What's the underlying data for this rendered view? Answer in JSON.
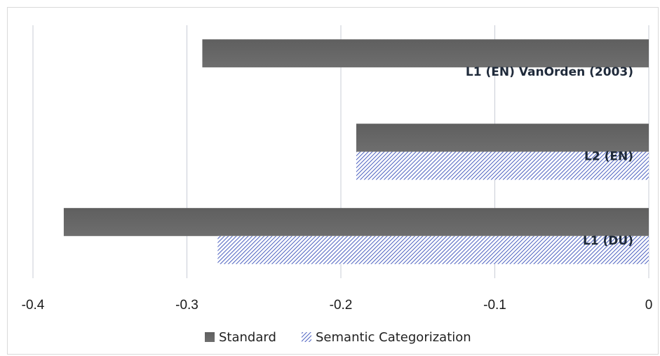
{
  "chart_data": {
    "type": "bar",
    "orientation": "horizontal",
    "categories": [
      "L1 (EN) VanOrden (2003)",
      "L2 (EN)",
      "L1 (DU)"
    ],
    "series": [
      {
        "name": "Standard",
        "values": [
          -0.29,
          -0.19,
          -0.38
        ],
        "color": "#666666",
        "pattern": "solid"
      },
      {
        "name": "Semantic Categorization",
        "values": [
          null,
          -0.19,
          -0.28
        ],
        "color": "#4a5fbf",
        "pattern": "diagonal-hatch"
      }
    ],
    "xlim": [
      -0.4,
      0
    ],
    "xticks": [
      -0.4,
      -0.3,
      -0.2,
      -0.1,
      0
    ],
    "xtick_labels": [
      "-0.4",
      "-0.3",
      "-0.2",
      "-0.1",
      "0"
    ],
    "grid": true,
    "legend": "bottom",
    "title": "",
    "xlabel": "",
    "ylabel": ""
  }
}
